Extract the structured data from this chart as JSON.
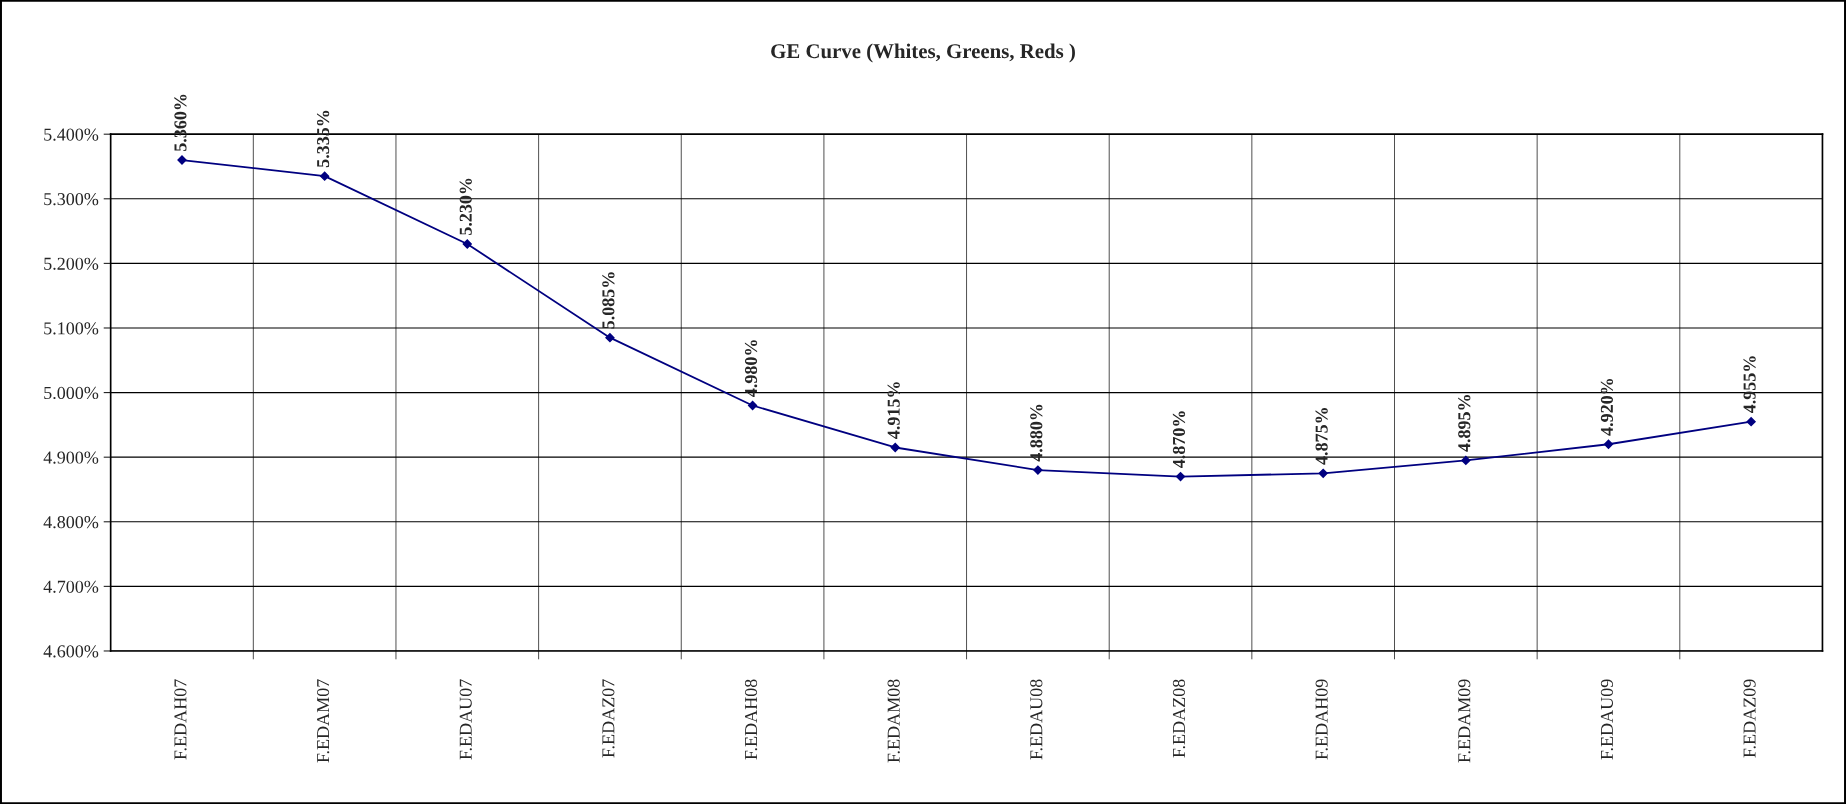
{
  "chart_data": {
    "type": "line",
    "title": "GE Curve (Whites, Greens, Reds )",
    "categories": [
      "F.EDAH07",
      "F.EDAM07",
      "F.EDAU07",
      "F.EDAZ07",
      "F.EDAH08",
      "F.EDAM08",
      "F.EDAU08",
      "F.EDAZ08",
      "F.EDAH09",
      "F.EDAM09",
      "F.EDAU09",
      "F.EDAZ09"
    ],
    "series": [
      {
        "color": "#000080",
        "values": [
          5.36,
          5.335,
          5.23,
          5.085,
          4.98,
          4.915,
          4.88,
          4.87,
          4.875,
          4.895,
          4.92,
          4.955
        ],
        "value_labels": [
          "5.360%",
          "5.335%",
          "5.230%",
          "5.085%",
          "4.980%",
          "4.915%",
          "4.880%",
          "4.870%",
          "4.875%",
          "4.895%",
          "4.920%",
          "4.955%"
        ]
      }
    ],
    "ylim": [
      4.6,
      5.4
    ],
    "yticks": [
      {
        "value": 4.6,
        "label": "4.600%"
      },
      {
        "value": 4.7,
        "label": "4.700%"
      },
      {
        "value": 4.8,
        "label": "4.800%"
      },
      {
        "value": 4.9,
        "label": "4.900%"
      },
      {
        "value": 5.0,
        "label": "5.000%"
      },
      {
        "value": 5.1,
        "label": "5.100%"
      },
      {
        "value": 5.2,
        "label": "5.200%"
      },
      {
        "value": 5.3,
        "label": "5.300%"
      },
      {
        "value": 5.4,
        "label": "5.400%"
      }
    ],
    "grid": true,
    "marker": "diamond",
    "line_style": "solid",
    "legend": false
  }
}
